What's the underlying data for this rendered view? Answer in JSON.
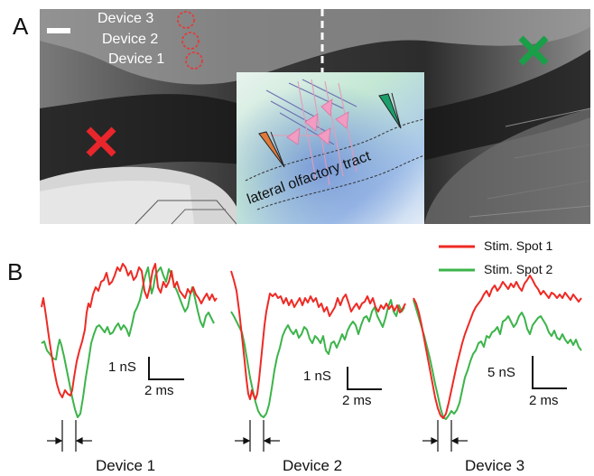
{
  "panels": {
    "a_label": "A",
    "b_label": "B"
  },
  "panel_a": {
    "devices": [
      "Device 3",
      "Device 2",
      "Device 1"
    ],
    "inset_text": "lateral olfactory tract",
    "markers": {
      "spot1_color": "#e8262b",
      "spot2_color": "#1a9e47"
    }
  },
  "legend": {
    "spot1": {
      "label": "Stim. Spot 1",
      "color": "#ee2a24"
    },
    "spot2": {
      "label": "Stim. Spot 2",
      "color": "#3cb44a"
    }
  },
  "traces": [
    {
      "caption": "Device 1",
      "y_scale": "1 nS",
      "x_scale": "2 ms"
    },
    {
      "caption": "Device 2",
      "y_scale": "1 nS",
      "x_scale": "2 ms"
    },
    {
      "caption": "Device 3",
      "y_scale": "5 nS",
      "x_scale": "2 ms"
    }
  ]
}
